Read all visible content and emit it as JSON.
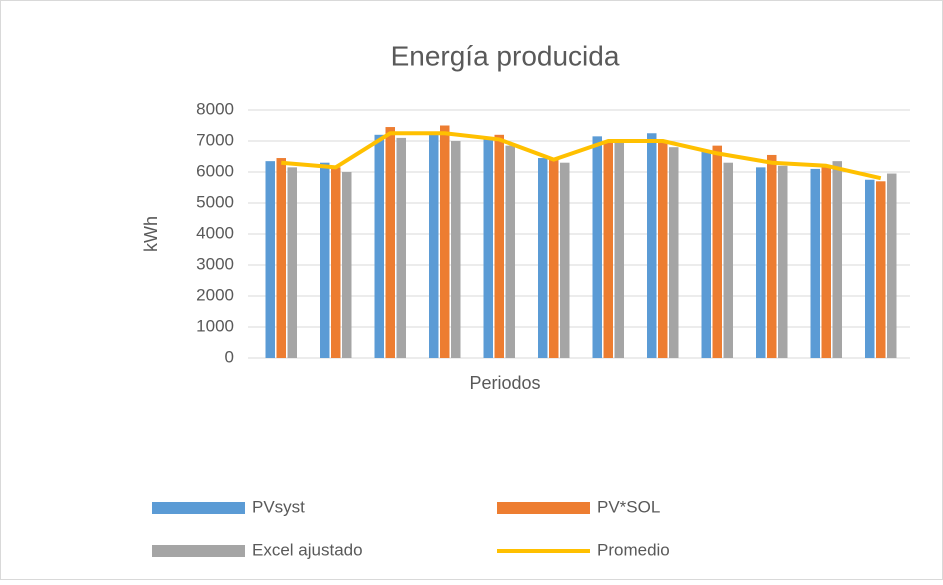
{
  "chart_data": {
    "type": "bar",
    "title": "Energía producida",
    "x_label": "Periodos",
    "y_label": "kWh",
    "categories": [
      null,
      null,
      null,
      null,
      null,
      null,
      null,
      null,
      null,
      null,
      null,
      null
    ],
    "series": [
      {
        "name": "PVsyst",
        "color": "#5b9bd5",
        "values": [
          6350,
          6300,
          7200,
          7300,
          7050,
          6450,
          7150,
          7250,
          6650,
          6150,
          6100,
          5750
        ]
      },
      {
        "name": "PV*SOL",
        "color": "#ed7d31",
        "values": [
          6450,
          6150,
          7450,
          7500,
          7200,
          6400,
          6950,
          6950,
          6850,
          6550,
          6150,
          5700
        ]
      },
      {
        "name": "Excel ajustado",
        "color": "#a5a5a5",
        "values": [
          6150,
          6000,
          7100,
          7000,
          6850,
          6300,
          6950,
          6800,
          6300,
          6200,
          6350,
          5950
        ]
      },
      {
        "name": "Promedio",
        "type": "line",
        "color": "#ffc000",
        "values": [
          6300,
          6150,
          7250,
          7250,
          7050,
          6400,
          7000,
          7000,
          6600,
          6300,
          6200,
          5800
        ]
      }
    ],
    "ylim": [
      0,
      8000
    ],
    "yticks": [
      0,
      1000,
      2000,
      3000,
      4000,
      5000,
      6000,
      7000,
      8000
    ],
    "grid": true,
    "legend": "bottom"
  }
}
